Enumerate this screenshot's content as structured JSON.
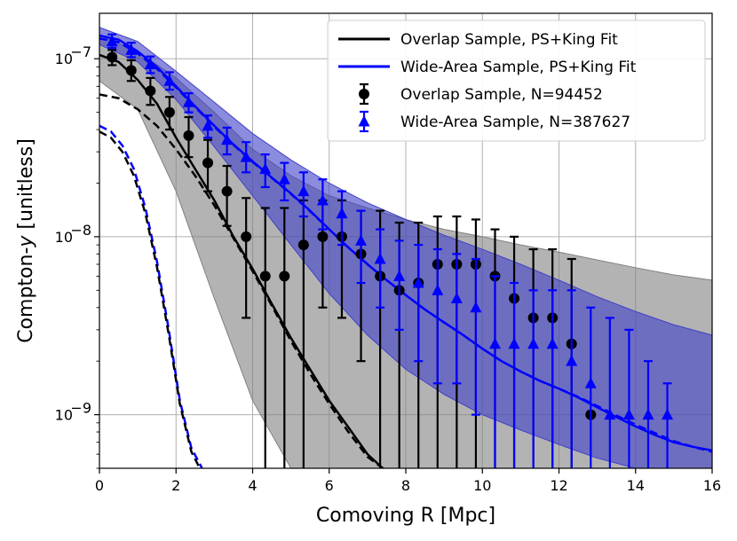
{
  "chart_data": {
    "type": "line",
    "xlabel": "Comoving R [Mpc]",
    "ylabel": "Compton-y [unitless]",
    "ylabel_parts": [
      "Compton-",
      "y",
      " [unitless]"
    ],
    "xlim": [
      0,
      16
    ],
    "ylim": [
      5e-10,
      1.8e-07
    ],
    "yscale": "log",
    "grid": true,
    "legend_placement": "top-right",
    "x_ticks": [
      0,
      2,
      4,
      6,
      8,
      10,
      12,
      14,
      16
    ],
    "y_ticks": [
      {
        "value": 1e-09,
        "label": "10",
        "exp": "−9"
      },
      {
        "value": 1e-08,
        "label": "10",
        "exp": "−8"
      },
      {
        "value": 1e-07,
        "label": "10",
        "exp": "−7"
      }
    ],
    "colors": {
      "overlap": "#000000",
      "wide": "#0000ff",
      "overlap_band": "#808080",
      "wide_band": "#4040c8"
    },
    "legend": [
      {
        "key": "overlap_fit",
        "label": "Overlap Sample, PS+King Fit",
        "kind": "line",
        "color": "#000000"
      },
      {
        "key": "wide_fit",
        "label": "Wide-Area Sample, PS+King Fit",
        "kind": "line",
        "color": "#0000ff"
      },
      {
        "key": "overlap_pts",
        "label": "Overlap Sample, N=94452",
        "kind": "circle",
        "color": "#000000"
      },
      {
        "key": "wide_pts",
        "label": "Wide-Area Sample, N=387627",
        "kind": "triangle",
        "color": "#0000ff"
      }
    ],
    "overlap_points": {
      "x": [
        0.33,
        0.83,
        1.33,
        1.83,
        2.33,
        2.83,
        3.33,
        3.83,
        4.33,
        4.83,
        5.33,
        5.83,
        6.33,
        6.83,
        7.33,
        7.83,
        8.33,
        8.83,
        9.33,
        9.83,
        10.33,
        10.83,
        11.33,
        11.83,
        12.33,
        12.83
      ],
      "y": [
        1.02e-07,
        8.6e-08,
        6.6e-08,
        5e-08,
        3.7e-08,
        2.6e-08,
        1.8e-08,
        1e-08,
        6e-09,
        6e-09,
        9e-09,
        1e-08,
        1e-08,
        8e-09,
        6e-09,
        5e-09,
        5.5e-09,
        7e-09,
        7e-09,
        7e-09,
        6e-09,
        4.5e-09,
        3.5e-09,
        3.5e-09,
        2.5e-09,
        1e-09
      ],
      "lo": [
        9.2e-08,
        7.5e-08,
        5.5e-08,
        4e-08,
        2.8e-08,
        1.8e-08,
        1.15e-08,
        3.5e-09,
        5e-10,
        5e-10,
        5e-10,
        4e-09,
        3.5e-09,
        2e-09,
        5e-10,
        5e-10,
        5e-10,
        5e-10,
        5e-10,
        5e-10,
        5e-10,
        5e-10,
        5e-10,
        5e-10,
        5e-10,
        5e-10
      ],
      "hi": [
        1.12e-07,
        9.8e-08,
        7.8e-08,
        6.1e-08,
        4.7e-08,
        3.5e-08,
        2.5e-08,
        1.65e-08,
        1.45e-08,
        1.45e-08,
        1.6e-08,
        1.6e-08,
        1.6e-08,
        1.4e-08,
        1.4e-08,
        1.2e-08,
        1.2e-08,
        1.3e-08,
        1.3e-08,
        1.25e-08,
        1.1e-08,
        1e-08,
        8.5e-09,
        8.5e-09,
        7.5e-09,
        5e-10
      ]
    },
    "wide_points": {
      "x": [
        0.33,
        0.83,
        1.33,
        1.83,
        2.33,
        2.83,
        3.33,
        3.83,
        4.33,
        4.83,
        5.33,
        5.83,
        6.33,
        6.83,
        7.33,
        7.83,
        8.33,
        8.83,
        9.33,
        9.83,
        10.33,
        10.83,
        11.33,
        11.83,
        12.33,
        12.83,
        13.33,
        13.83,
        14.33,
        14.83
      ],
      "y": [
        1.25e-07,
        1.12e-07,
        9.3e-08,
        7.5e-08,
        5.7e-08,
        4.2e-08,
        3.5e-08,
        2.8e-08,
        2.4e-08,
        2.1e-08,
        1.8e-08,
        1.6e-08,
        1.35e-08,
        9.5e-09,
        7.5e-09,
        6e-09,
        5.5e-09,
        5e-09,
        4.5e-09,
        4e-09,
        2.5e-09,
        2.5e-09,
        2.5e-09,
        2.5e-09,
        2e-09,
        1.5e-09,
        1e-09,
        1e-09,
        1e-09,
        1e-09
      ],
      "lo": [
        1.15e-07,
        1.02e-07,
        8.3e-08,
        6.7e-08,
        5e-08,
        3.6e-08,
        2.9e-08,
        2.3e-08,
        1.9e-08,
        1.6e-08,
        1.3e-08,
        1.1e-08,
        9e-09,
        5.5e-09,
        4e-09,
        3e-09,
        2e-09,
        1.5e-09,
        1.5e-09,
        1e-09,
        5e-10,
        5e-10,
        5e-10,
        5e-10,
        5e-10,
        5e-10,
        5e-10,
        5e-10,
        5e-10,
        5e-10
      ],
      "hi": [
        1.37e-07,
        1.23e-07,
        1.03e-07,
        8.4e-08,
        6.4e-08,
        4.8e-08,
        4.1e-08,
        3.4e-08,
        2.9e-08,
        2.6e-08,
        2.3e-08,
        2.1e-08,
        1.8e-08,
        1.4e-08,
        1.1e-08,
        9.5e-09,
        9e-09,
        8.5e-09,
        8e-09,
        7.5e-09,
        6e-09,
        5.5e-09,
        5e-09,
        5e-09,
        5e-09,
        4e-09,
        3.5e-09,
        3e-09,
        2e-09,
        1.5e-09
      ]
    },
    "overlap_fit": {
      "x": [
        0,
        0.5,
        1,
        1.5,
        2,
        2.5,
        3,
        3.5,
        4,
        4.5,
        5,
        5.5,
        6,
        6.5,
        7,
        7.4
      ],
      "y": [
        1.05e-07,
        9.6e-08,
        7.6e-08,
        5.6e-08,
        3.6e-08,
        2.4e-08,
        1.6e-08,
        1e-08,
        6.6e-09,
        4.2e-09,
        2.7e-09,
        1.8e-09,
        1.2e-09,
        8.5e-10,
        6e-10,
        5e-10
      ]
    },
    "wide_fit": {
      "x": [
        0,
        0.5,
        1,
        1.5,
        2,
        2.5,
        3,
        3.5,
        4,
        4.5,
        5,
        5.5,
        6,
        6.5,
        7,
        7.5,
        8,
        8.5,
        9,
        9.5,
        10,
        10.5,
        11,
        11.5,
        12,
        12.5,
        13,
        13.5,
        14,
        14.5,
        15,
        15.5,
        16
      ],
      "y": [
        1.35e-07,
        1.28e-07,
        1.1e-07,
        9e-08,
        7e-08,
        5.4e-08,
        4.2e-08,
        3.3e-08,
        2.65e-08,
        2.15e-08,
        1.75e-08,
        1.4e-08,
        1.1e-08,
        8.7e-09,
        7e-09,
        5.7e-09,
        4.7e-09,
        3.9e-09,
        3.3e-09,
        2.8e-09,
        2.35e-09,
        2e-09,
        1.75e-09,
        1.55e-09,
        1.4e-09,
        1.25e-09,
        1.1e-09,
        9.7e-10,
        8.6e-10,
        7.7e-10,
        7e-10,
        6.6e-10,
        6.3e-10
      ]
    },
    "overlap_king": {
      "x": [
        0,
        0.5,
        1,
        1.5,
        2,
        2.5,
        3,
        3.5,
        4,
        4.5,
        5,
        5.5,
        6,
        6.5,
        7,
        7.4
      ],
      "y": [
        6.3e-08,
        6e-08,
        5.2e-08,
        4.2e-08,
        3.1e-08,
        2.2e-08,
        1.5e-08,
        9.8e-09,
        6.4e-09,
        4.1e-09,
        2.6e-09,
        1.7e-09,
        1.15e-09,
        8e-10,
        5.8e-10,
        5e-10
      ]
    },
    "wide_king": {
      "x": [
        0,
        0.5,
        1,
        1.5,
        2,
        2.5,
        3,
        3.5,
        4,
        4.5,
        5,
        5.5,
        6,
        6.5,
        7,
        7.5,
        8,
        8.5,
        9,
        9.5,
        10,
        10.5,
        11,
        11.5,
        12,
        12.5,
        13,
        13.5,
        14,
        14.5,
        15,
        15.5,
        16
      ],
      "y": [
        1.3e-07,
        1.24e-07,
        1.07e-07,
        8.8e-08,
        6.9e-08,
        5.35e-08,
        4.15e-08,
        3.28e-08,
        2.63e-08,
        2.14e-08,
        1.74e-08,
        1.39e-08,
        1.1e-08,
        8.7e-09,
        7e-09,
        5.7e-09,
        4.7e-09,
        3.9e-09,
        3.3e-09,
        2.8e-09,
        2.35e-09,
        2e-09,
        1.75e-09,
        1.55e-09,
        1.4e-09,
        1.26e-09,
        1.12e-09,
        9.9e-10,
        8.8e-10,
        7.9e-10,
        7.1e-10,
        6.6e-10,
        6.2e-10
      ]
    },
    "overlap_ps": {
      "x": [
        0,
        0.3,
        0.6,
        0.9,
        1.2,
        1.5,
        1.8,
        2.1,
        2.4,
        2.62
      ],
      "y": [
        3.9e-08,
        3.6e-08,
        3e-08,
        2.2e-08,
        1.35e-08,
        6.8e-09,
        2.9e-09,
        1.15e-09,
        6.2e-10,
        5e-10
      ]
    },
    "wide_ps": {
      "x": [
        0,
        0.3,
        0.6,
        0.9,
        1.2,
        1.5,
        1.8,
        2.1,
        2.4,
        2.68
      ],
      "y": [
        4.2e-08,
        3.9e-08,
        3.25e-08,
        2.4e-08,
        1.45e-08,
        7.3e-09,
        3.1e-09,
        1.2e-09,
        6.5e-10,
        5e-10
      ]
    },
    "overlap_band": {
      "x": [
        0,
        1,
        2,
        3,
        4,
        5,
        6,
        7,
        8,
        9,
        10,
        11,
        12,
        13,
        14,
        15,
        16
      ],
      "lower": [
        7.5e-08,
        5.2e-08,
        1.8e-08,
        4.5e-09,
        1.2e-09,
        5e-10,
        5e-10,
        5e-10,
        5e-10,
        5e-10,
        5e-10,
        5e-10,
        5e-10,
        5e-10,
        5e-10,
        5e-10,
        5e-10
      ],
      "upper": [
        1.35e-07,
        1.1e-07,
        7.8e-08,
        5e-08,
        3.1e-08,
        2.2e-08,
        1.7e-08,
        1.45e-08,
        1.25e-08,
        1.1e-08,
        1e-08,
        9e-09,
        8.2e-09,
        7.4e-09,
        6.7e-09,
        6.1e-09,
        5.7e-09
      ]
    },
    "wide_band": {
      "x": [
        0,
        1,
        2,
        3,
        4,
        5,
        6,
        7,
        8,
        9,
        10,
        11,
        12,
        13,
        14,
        15,
        16
      ],
      "lower": [
        1.2e-07,
        9.6e-08,
        5.9e-08,
        3.2e-08,
        1.7e-08,
        9e-09,
        4.8e-09,
        2.8e-09,
        1.8e-09,
        1.3e-09,
        1e-09,
        8.2e-10,
        6.8e-10,
        5.7e-10,
        5e-10,
        5e-10,
        5e-10
      ],
      "upper": [
        1.5e-07,
        1.25e-07,
        8.5e-08,
        5.7e-08,
        3.8e-08,
        2.7e-08,
        2e-08,
        1.55e-08,
        1.25e-08,
        1.02e-08,
        8.5e-09,
        7e-09,
        5.7e-09,
        4.6e-09,
        3.8e-09,
        3.2e-09,
        2.8e-09
      ]
    }
  }
}
